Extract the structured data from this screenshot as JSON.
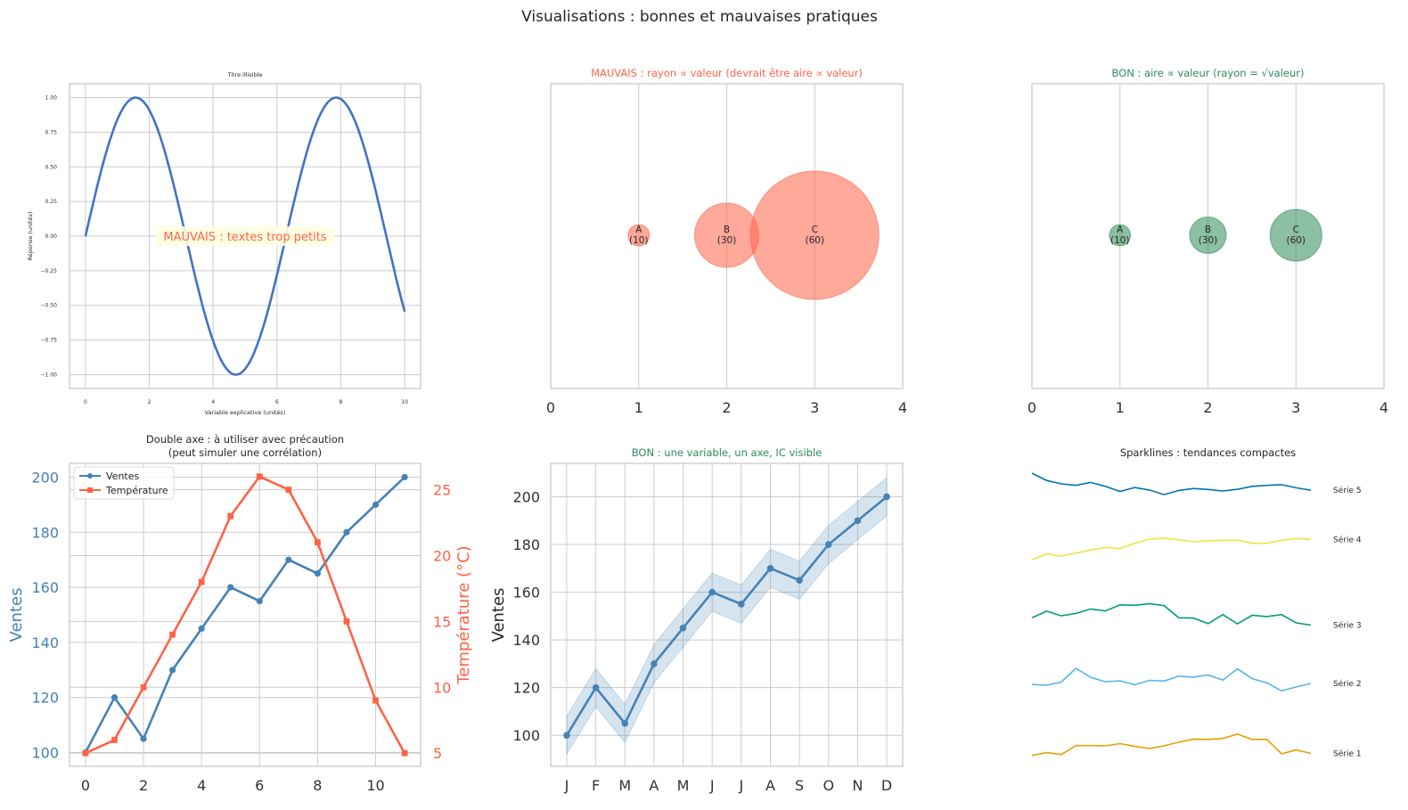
{
  "figure": {
    "suptitle": "Visualisations : bonnes et mauvaises pratiques"
  },
  "colors": {
    "grid": "#cccccc",
    "spine": "#cccccc",
    "text": "#262626",
    "tick": "#333333",
    "sine": "#4472c4",
    "bad": "#ff6347",
    "bad_fill": "#ffa69a",
    "good": "#2e8b57",
    "good_fill": "#96c5a8",
    "ventes": "#4682b4",
    "temp": "#ff6347",
    "ci": "#c6d7e8",
    "annotation_bg": "#ffffe0"
  },
  "chart_data": [
    {
      "id": "sine",
      "type": "line",
      "title": "Titre illisible",
      "xlabel": "Variable explicative (unités)",
      "ylabel": "Réponse (unités)",
      "xlim": [
        -0.5,
        10.5
      ],
      "ylim": [
        -1.1,
        1.1
      ],
      "xticks": [
        0,
        2,
        4,
        6,
        8,
        10
      ],
      "yticks": [
        1.0,
        0.75,
        0.5,
        0.25,
        0.0,
        -0.25,
        -0.5,
        -0.75,
        -1.0
      ],
      "ytick_labels": [
        "1.00",
        "0.75",
        "0.50",
        "0.25",
        "0.00",
        "−0.25",
        "−0.50",
        "−0.75",
        "−1.00"
      ],
      "function": "sin(x)",
      "x_range": [
        0,
        10
      ],
      "annotation": "MAUVAIS : textes trop petits"
    },
    {
      "id": "bubble_bad",
      "type": "scatter",
      "title": "MAUVAIS : rayon ∝ valeur (devrait être aire ∝ valeur)",
      "xlim": [
        0,
        4
      ],
      "ylim": [
        -1,
        1
      ],
      "xticks": [
        0,
        1,
        2,
        3,
        4
      ],
      "points": [
        {
          "x": 1,
          "label": "A",
          "value": 10,
          "value_label": "(10)"
        },
        {
          "x": 2,
          "label": "B",
          "value": 30,
          "value_label": "(30)"
        },
        {
          "x": 3,
          "label": "C",
          "value": 60,
          "value_label": "(60)"
        }
      ],
      "scaling": "radius"
    },
    {
      "id": "bubble_good",
      "type": "scatter",
      "title": "BON : aire ∝ valeur (rayon = √valeur)",
      "xlim": [
        0,
        4
      ],
      "ylim": [
        -1,
        1
      ],
      "xticks": [
        0,
        1,
        2,
        3,
        4
      ],
      "points": [
        {
          "x": 1,
          "label": "A",
          "value": 10,
          "value_label": "(10)"
        },
        {
          "x": 2,
          "label": "B",
          "value": 30,
          "value_label": "(30)"
        },
        {
          "x": 3,
          "label": "C",
          "value": 60,
          "value_label": "(60)"
        }
      ],
      "scaling": "area"
    },
    {
      "id": "dual_axis",
      "type": "line",
      "title_line1": "Double axe : à utiliser avec précaution",
      "title_line2": "(peut simuler une corrélation)",
      "x": [
        0,
        1,
        2,
        3,
        4,
        5,
        6,
        7,
        8,
        9,
        10,
        11
      ],
      "xlim": [
        -0.55,
        11.55
      ],
      "xticks": [
        0,
        2,
        4,
        6,
        8,
        10
      ],
      "series": [
        {
          "name": "Ventes",
          "axis": "left",
          "values": [
            100,
            120,
            105,
            130,
            145,
            160,
            155,
            170,
            165,
            180,
            190,
            200
          ]
        },
        {
          "name": "Température",
          "axis": "right",
          "values": [
            5,
            6,
            10,
            14,
            18,
            23,
            26,
            25,
            21,
            15,
            9,
            5
          ]
        }
      ],
      "ylabel_left": "Ventes",
      "ylabel_right": "Température (°C)",
      "ylim_left": [
        95,
        205
      ],
      "ylim_right": [
        4.0,
        27.0
      ],
      "yticks_left": [
        100,
        120,
        140,
        160,
        180,
        200
      ],
      "yticks_right": [
        5,
        10,
        15,
        20,
        25
      ],
      "legend": [
        "Ventes",
        "Température"
      ]
    },
    {
      "id": "ci_line",
      "type": "line",
      "title": "BON : une variable, un axe, IC visible",
      "categories": [
        "J",
        "F",
        "M",
        "A",
        "M",
        "J",
        "J",
        "A",
        "S",
        "O",
        "N",
        "D"
      ],
      "values": [
        100,
        120,
        105,
        130,
        145,
        160,
        155,
        170,
        165,
        180,
        190,
        200
      ],
      "ci_halfwidth": 8,
      "ylabel": "Ventes",
      "ylim": [
        87,
        214
      ],
      "yticks": [
        100,
        120,
        140,
        160,
        180,
        200
      ]
    },
    {
      "id": "sparklines",
      "type": "line",
      "title": "Sparklines : tendances compactes",
      "series": [
        {
          "name": "Série 5",
          "color": "#0072b2",
          "values": [
            208.0,
            205.0,
            203.6,
            203.0,
            204.2,
            202.6,
            200.5,
            202.1,
            201.1,
            199.2,
            200.9,
            201.7,
            201.3,
            200.7,
            201.4,
            202.6,
            203.0,
            203.3,
            202.0,
            201.0
          ]
        },
        {
          "name": "Série 4",
          "color": "#f0e442",
          "values": [
            172.5,
            175.0,
            174.0,
            175.3,
            176.5,
            177.6,
            177.1,
            179.3,
            181.0,
            181.4,
            180.7,
            179.9,
            180.3,
            180.5,
            180.6,
            179.3,
            179.3,
            180.5,
            181.3,
            180.9
          ]
        },
        {
          "name": "Série 3",
          "color": "#009e73",
          "values": [
            148.8,
            151.5,
            149.6,
            150.6,
            152.4,
            151.6,
            154.1,
            153.9,
            154.6,
            153.8,
            148.8,
            148.7,
            146.4,
            150.1,
            146.3,
            149.8,
            149.3,
            150.1,
            146.7,
            145.8
          ]
        },
        {
          "name": "Série 2",
          "color": "#56b4e9",
          "values": [
            121.5,
            121.2,
            122.5,
            128.1,
            124.4,
            122.6,
            123.0,
            121.4,
            123.2,
            122.9,
            124.9,
            124.5,
            125.4,
            123.3,
            127.9,
            123.9,
            122.2,
            118.9,
            120.5,
            121.9
          ]
        },
        {
          "name": "Série 1",
          "color": "#e69f00",
          "values": [
            92.4,
            93.6,
            92.8,
            96.5,
            96.5,
            96.4,
            97.3,
            96.2,
            95.3,
            96.4,
            97.9,
            99.1,
            99.0,
            99.4,
            101.2,
            99.0,
            99.0,
            93.1,
            94.7,
            93.3
          ]
        }
      ],
      "ylim": [
        88,
        212
      ]
    }
  ]
}
